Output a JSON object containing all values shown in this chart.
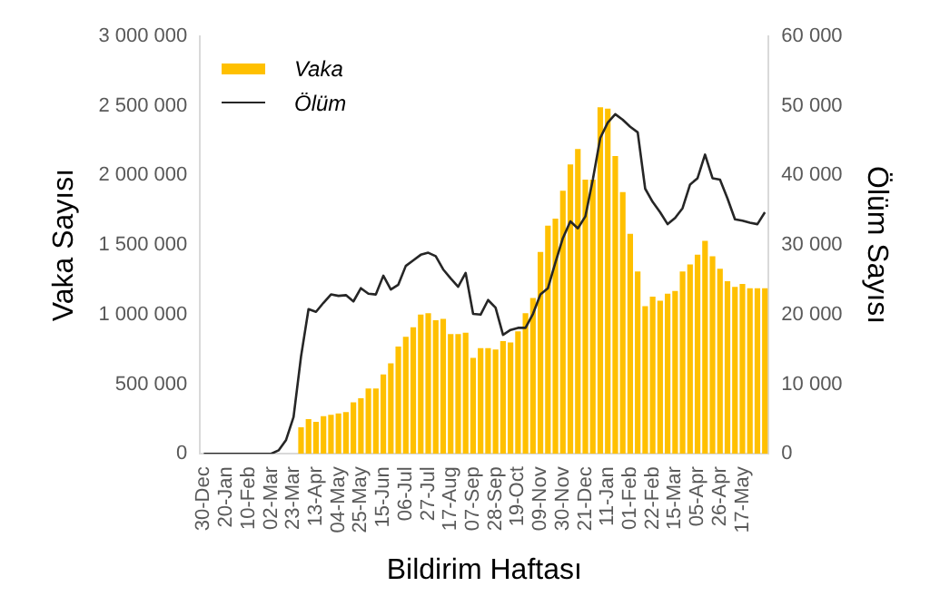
{
  "chart_data": {
    "type": "bar",
    "xlabel": "Bildirim Haftası",
    "ylabel": "Vaka Sayısı",
    "y2label": "Ölüm Sayısı",
    "categories": [
      "30-Dec",
      null,
      null,
      "20-Jan",
      null,
      null,
      "10-Feb",
      null,
      null,
      "02-Mar",
      null,
      null,
      "23-Mar",
      null,
      null,
      "13-Apr",
      null,
      null,
      "04-May",
      null,
      null,
      "25-May",
      null,
      null,
      "15-Jun",
      null,
      null,
      "06-Jul",
      null,
      null,
      "27-Jul",
      null,
      null,
      "17-Aug",
      null,
      null,
      "07-Sep",
      null,
      null,
      "28-Sep",
      null,
      null,
      "19-Oct",
      null,
      null,
      "09-Nov",
      null,
      null,
      "30-Nov",
      null,
      null,
      "21-Dec",
      null,
      null,
      "11-Jan",
      null,
      null,
      "01-Feb",
      null,
      null,
      "22-Feb",
      null,
      null,
      "15-Mar",
      null,
      null,
      "05-Apr",
      null,
      null,
      "26-Apr",
      null,
      null,
      "17-May",
      null,
      null,
      null
    ],
    "series": [
      {
        "name": "Vaka",
        "color": "#ffc000",
        "values": [
          null,
          null,
          null,
          null,
          null,
          null,
          null,
          null,
          null,
          null,
          null,
          null,
          null,
          190000,
          250000,
          230000,
          270000,
          280000,
          290000,
          300000,
          370000,
          400000,
          470000,
          470000,
          570000,
          650000,
          770000,
          840000,
          910000,
          1000000,
          1010000,
          960000,
          970000,
          860000,
          860000,
          870000,
          690000,
          760000,
          760000,
          750000,
          810000,
          800000,
          880000,
          1010000,
          1120000,
          1450000,
          1640000,
          1690000,
          1890000,
          2080000,
          2190000,
          1970000,
          1970000,
          2490000,
          2480000,
          2140000,
          1880000,
          1580000,
          1310000,
          1060000,
          1130000,
          1100000,
          1150000,
          1170000,
          1310000,
          1360000,
          1430000,
          1530000,
          1420000,
          1330000,
          1240000,
          1200000,
          1220000,
          1190000,
          1190000,
          1190000
        ]
      },
      {
        "name": "Ölüm",
        "type": "line",
        "axis": "y2",
        "color": "#262626",
        "values": [
          0,
          0,
          0,
          0,
          0,
          0,
          0,
          0,
          0,
          0,
          500,
          2000,
          5300,
          14000,
          20800,
          20400,
          21700,
          22900,
          22700,
          22800,
          21900,
          23800,
          23000,
          22900,
          25600,
          23600,
          24300,
          27000,
          27800,
          28600,
          28900,
          28400,
          26500,
          25200,
          24000,
          26000,
          20100,
          20000,
          22100,
          21000,
          17100,
          17800,
          18100,
          18100,
          20100,
          22900,
          23800,
          27500,
          31000,
          33400,
          32400,
          34100,
          39400,
          45400,
          47600,
          48800,
          48000,
          47000,
          46200,
          38100,
          36200,
          34700,
          33000,
          33900,
          35300,
          38700,
          39600,
          43000,
          39600,
          39400,
          36700,
          33700,
          33500,
          33200,
          33000,
          34700
        ]
      }
    ],
    "ylim": [
      0,
      3000000
    ],
    "yticks": [
      {
        "value": 0,
        "label": "0"
      },
      {
        "value": 500000,
        "label": "500 000"
      },
      {
        "value": 1000000,
        "label": "1 000 000"
      },
      {
        "value": 1500000,
        "label": "1 500 000"
      },
      {
        "value": 2000000,
        "label": "2 000 000"
      },
      {
        "value": 2500000,
        "label": "2 500 000"
      },
      {
        "value": 3000000,
        "label": "3 000 000"
      }
    ],
    "y2lim": [
      0,
      60000
    ],
    "y2ticks": [
      {
        "value": 0,
        "label": "0"
      },
      {
        "value": 10000,
        "label": "10 000"
      },
      {
        "value": 20000,
        "label": "20 000"
      },
      {
        "value": 30000,
        "label": "30 000"
      },
      {
        "value": 40000,
        "label": "40 000"
      },
      {
        "value": 50000,
        "label": "50 000"
      },
      {
        "value": 60000,
        "label": "60 000"
      }
    ],
    "grid": false,
    "legend": "top left",
    "marker": "none",
    "line_style": "solid"
  }
}
